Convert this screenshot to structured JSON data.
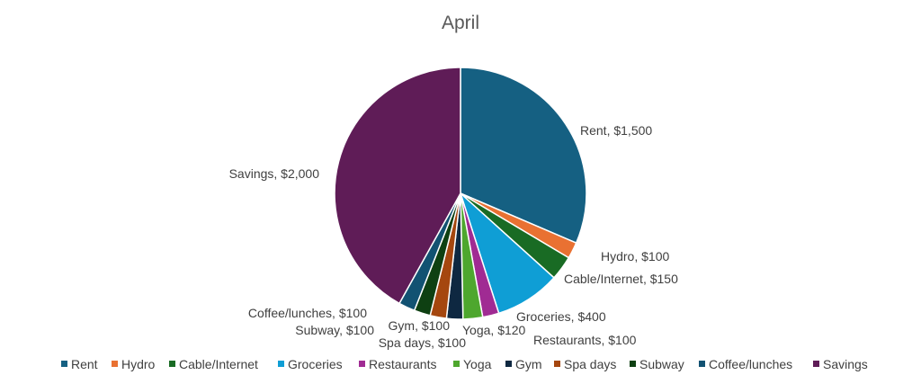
{
  "chart_data": {
    "type": "pie",
    "title": "April",
    "categories": [
      "Rent",
      "Hydro",
      "Cable/Internet",
      "Groceries",
      "Restaurants",
      "Yoga",
      "Gym",
      "Spa days",
      "Subway",
      "Coffee/lunches",
      "Savings"
    ],
    "values": [
      1500,
      100,
      150,
      400,
      100,
      120,
      100,
      100,
      100,
      100,
      2000
    ],
    "data_labels": [
      "Rent, $1,500",
      "Hydro, $100",
      "Cable/Internet, $150",
      "Groceries, $400",
      "Restaurants, $100",
      "Yoga, $120",
      "Gym, $100",
      "Spa days, $100",
      "Subway, $100",
      "Coffee/lunches, $100",
      "Savings, $2,000"
    ],
    "colors": [
      "#156082",
      "#E97132",
      "#196B24",
      "#0F9ED5",
      "#A02B93",
      "#4EA72E",
      "#0E2841",
      "#A5470F",
      "#0E4012",
      "#125272",
      "#5F1C57"
    ],
    "legend_position": "bottom",
    "start_angle_degrees": 0,
    "direction": "clockwise"
  }
}
